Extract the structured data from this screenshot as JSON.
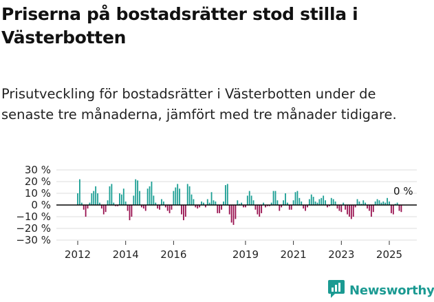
{
  "title": "Priserna på bostadsrätter stod stilla i Västerbotten",
  "subtitle": "Prisutveckling för bostadsrätter i Västerbotten under de senaste tre månaderna, jämfört med tre månader tidigare.",
  "brand": {
    "name": "Newsworthy",
    "icon": "newsworthy-logo-icon"
  },
  "colors": {
    "positive": "#1a9e93",
    "negative": "#98114f",
    "zero_line": "#000000",
    "grid": "#dddddd"
  },
  "chart_data": {
    "type": "bar",
    "x_start": "2012-01",
    "x_end": "2025-08",
    "x_interval": "month",
    "ylim": [
      -30,
      30
    ],
    "y_ticks": [
      30,
      20,
      10,
      0,
      -10,
      -20,
      -30
    ],
    "y_tick_labels": [
      "30 %",
      "20 %",
      "10 %",
      "0 %",
      "−10 %",
      "−20 %",
      "−30 %"
    ],
    "x_ticks": [
      "2012-01",
      "2014-01",
      "2016-01",
      "2019-01",
      "2021-01",
      "2023-01",
      "2025-01"
    ],
    "x_tick_labels": [
      "2012",
      "2014",
      "2016",
      "2019",
      "2021",
      "2023",
      "2025"
    ],
    "annotation": {
      "text": "0 %",
      "x": "2025-08",
      "y": 0
    },
    "grid": true,
    "values": [
      10,
      22,
      2,
      -4,
      -10,
      -3,
      2,
      10,
      12,
      16,
      10,
      2,
      -3,
      -8,
      -6,
      4,
      16,
      18,
      2,
      -1,
      -1,
      10,
      9,
      14,
      3,
      -5,
      -13,
      -10,
      8,
      22,
      21,
      12,
      -2,
      -3,
      -5,
      14,
      16,
      20,
      8,
      2,
      -3,
      -4,
      5,
      3,
      -2,
      -5,
      -7,
      -4,
      12,
      15,
      18,
      14,
      -8,
      -13,
      -10,
      18,
      16,
      9,
      5,
      -2,
      -3,
      -2,
      3,
      2,
      -2,
      5,
      2,
      11,
      4,
      3,
      -7,
      -7,
      -4,
      3,
      17,
      18,
      -8,
      -15,
      -17,
      -12,
      4,
      1,
      2,
      -2,
      -2,
      8,
      12,
      8,
      4,
      -4,
      -8,
      -10,
      -7,
      2,
      -2,
      -1,
      -1,
      2,
      12,
      12,
      4,
      -5,
      -2,
      4,
      10,
      2,
      -4,
      -4,
      4,
      11,
      12,
      6,
      3,
      -3,
      -5,
      -2,
      5,
      9,
      7,
      3,
      2,
      5,
      6,
      8,
      4,
      -2,
      -1,
      6,
      5,
      3,
      -3,
      -5,
      -6,
      2,
      -4,
      -8,
      -10,
      -12,
      -10,
      -2,
      5,
      3,
      1,
      4,
      2,
      -3,
      -5,
      -10,
      -6,
      3,
      5,
      4,
      2,
      3,
      2,
      6,
      3,
      -7,
      -8,
      1,
      2,
      -5,
      -6,
      0
    ]
  }
}
